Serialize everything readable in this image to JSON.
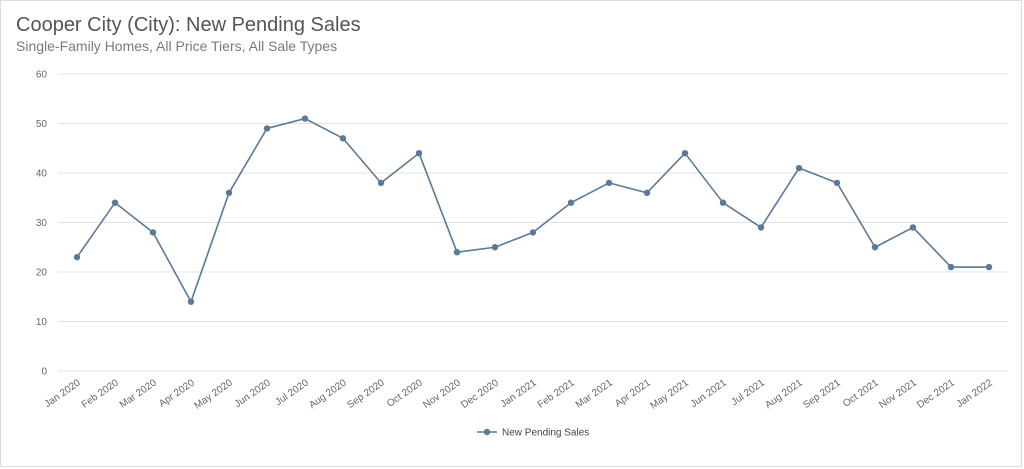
{
  "header": {
    "title": "Cooper City (City): New Pending Sales",
    "subtitle": "Single-Family Homes, All Price Tiers, All Sale Types"
  },
  "chart_data": {
    "type": "line",
    "title": "Cooper City (City): New Pending Sales",
    "subtitle": "Single-Family Homes, All Price Tiers, All Sale Types",
    "xlabel": "",
    "ylabel": "",
    "ylim": [
      0,
      60
    ],
    "yticks": [
      0,
      10,
      20,
      30,
      40,
      50,
      60
    ],
    "grid": true,
    "legend_position": "bottom",
    "categories": [
      "Jan 2020",
      "Feb 2020",
      "Mar 2020",
      "Apr 2020",
      "May 2020",
      "Jun 2020",
      "Jul 2020",
      "Aug 2020",
      "Sep 2020",
      "Oct 2020",
      "Nov 2020",
      "Dec 2020",
      "Jan 2021",
      "Feb 2021",
      "Mar 2021",
      "Apr 2021",
      "May 2021",
      "Jun 2021",
      "Jul 2021",
      "Aug 2021",
      "Sep 2021",
      "Oct 2021",
      "Nov 2021",
      "Dec 2021",
      "Jan 2022"
    ],
    "series": [
      {
        "name": "New Pending Sales",
        "color": "#5b7a99",
        "values": [
          23,
          34,
          28,
          14,
          36,
          49,
          51,
          47,
          38,
          44,
          24,
          25,
          28,
          34,
          38,
          36,
          44,
          34,
          29,
          41,
          38,
          25,
          29,
          21,
          21
        ]
      }
    ]
  }
}
